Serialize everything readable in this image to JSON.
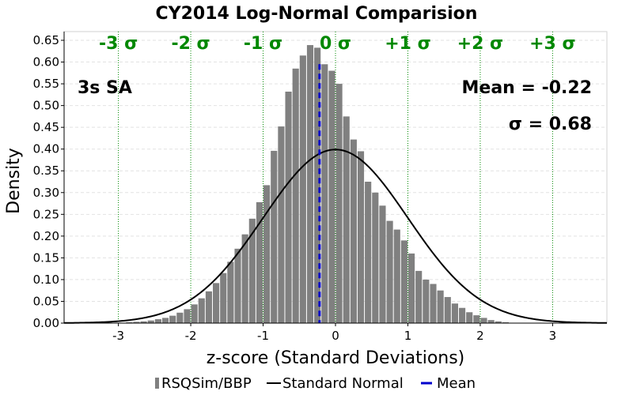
{
  "chart_data": {
    "type": "bar",
    "title": "CY2014 Log-Normal Comparision",
    "xlabel": "z-score (Standard Deviations)",
    "ylabel": "Density",
    "xlim": [
      -3.75,
      3.75
    ],
    "ylim": [
      0,
      0.67
    ],
    "x_ticks": [
      -3,
      -2,
      -1,
      0,
      1,
      2,
      3
    ],
    "y_ticks": [
      0.0,
      0.05,
      0.1,
      0.15,
      0.2,
      0.25,
      0.3,
      0.35,
      0.4,
      0.45,
      0.5,
      0.55,
      0.6,
      0.65
    ],
    "grid": true,
    "legend_position": "bottom",
    "bin_width": 0.1,
    "series": [
      {
        "name": "RSQSim/BBP",
        "kind": "histogram",
        "color": "#808080",
        "x": [
          -3.05,
          -2.95,
          -2.85,
          -2.75,
          -2.65,
          -2.55,
          -2.45,
          -2.35,
          -2.25,
          -2.15,
          -2.05,
          -1.95,
          -1.85,
          -1.75,
          -1.65,
          -1.55,
          -1.45,
          -1.35,
          -1.25,
          -1.15,
          -1.05,
          -0.95,
          -0.85,
          -0.75,
          -0.65,
          -0.55,
          -0.45,
          -0.35,
          -0.25,
          -0.15,
          -0.05,
          0.05,
          0.15,
          0.25,
          0.35,
          0.45,
          0.55,
          0.65,
          0.75,
          0.85,
          0.95,
          1.05,
          1.15,
          1.25,
          1.35,
          1.45,
          1.55,
          1.65,
          1.75,
          1.85,
          1.95,
          2.05,
          2.15,
          2.25,
          2.35
        ],
        "values": [
          0.001,
          0.001,
          0.002,
          0.003,
          0.004,
          0.006,
          0.009,
          0.012,
          0.017,
          0.024,
          0.032,
          0.043,
          0.057,
          0.073,
          0.092,
          0.115,
          0.141,
          0.171,
          0.204,
          0.24,
          0.278,
          0.317,
          0.396,
          0.452,
          0.532,
          0.585,
          0.615,
          0.639,
          0.633,
          0.595,
          0.58,
          0.55,
          0.475,
          0.422,
          0.395,
          0.325,
          0.3,
          0.27,
          0.235,
          0.215,
          0.19,
          0.16,
          0.12,
          0.1,
          0.09,
          0.075,
          0.06,
          0.045,
          0.035,
          0.025,
          0.018,
          0.012,
          0.007,
          0.004,
          0.002
        ]
      },
      {
        "name": "Standard Normal",
        "kind": "curve",
        "color": "#000000",
        "mean": 0,
        "std": 1
      },
      {
        "name": "Mean",
        "kind": "vline",
        "color": "#0000cc",
        "x": -0.22
      }
    ],
    "sigma_lines": {
      "color": "#008800",
      "x": [
        -3,
        -2,
        -1,
        0,
        1,
        2,
        3
      ],
      "labels": [
        "-3 σ",
        "-2 σ",
        "-1 σ",
        "0 σ",
        "+1 σ",
        "+2 σ",
        "+3 σ"
      ]
    },
    "annotations": {
      "left": "3s SA",
      "mean": "Mean = -0.22",
      "sigma": "σ = 0.68"
    }
  }
}
